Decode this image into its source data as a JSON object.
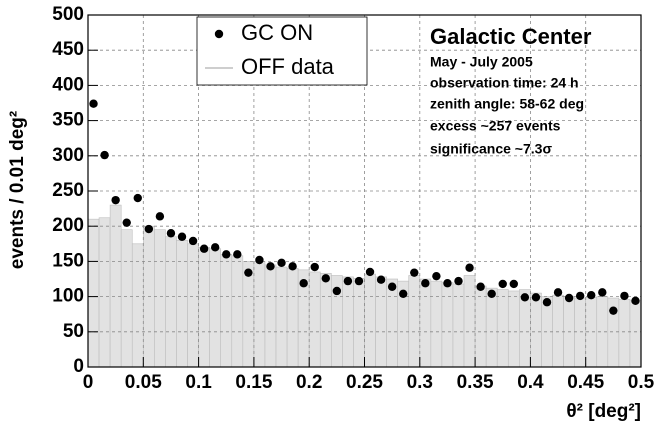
{
  "chart_data": {
    "type": "histogram",
    "title": "Galactic Center",
    "annotations": [
      "May - July 2005",
      "observation time: 24 h",
      "zenith angle: 58-62 deg",
      "excess ~257 events",
      "significance ~7.3σ"
    ],
    "xlabel": "θ² [deg²]",
    "ylabel": "events / 0.01 deg²",
    "bins": [
      0,
      0.01,
      0.02,
      0.03,
      0.04,
      0.05,
      0.06,
      0.07,
      0.08,
      0.09,
      0.1,
      0.11,
      0.12,
      0.13,
      0.14,
      0.15,
      0.16,
      0.17,
      0.18,
      0.19,
      0.2,
      0.21,
      0.22,
      0.23,
      0.24,
      0.25,
      0.26,
      0.27,
      0.28,
      0.29,
      0.3,
      0.31,
      0.32,
      0.33,
      0.34,
      0.35,
      0.36,
      0.37,
      0.38,
      0.39,
      0.4,
      0.41,
      0.42,
      0.43,
      0.44,
      0.45,
      0.46,
      0.47,
      0.48,
      0.49,
      0.5
    ],
    "series": [
      {
        "name": "GC ON",
        "type": "scatter",
        "color": "#000000",
        "x": [
          0.005,
          0.015,
          0.025,
          0.035,
          0.045,
          0.055,
          0.065,
          0.075,
          0.085,
          0.095,
          0.105,
          0.115,
          0.125,
          0.135,
          0.145,
          0.155,
          0.165,
          0.175,
          0.185,
          0.195,
          0.205,
          0.215,
          0.225,
          0.235,
          0.245,
          0.255,
          0.265,
          0.275,
          0.285,
          0.295,
          0.305,
          0.315,
          0.325,
          0.335,
          0.345,
          0.355,
          0.365,
          0.375,
          0.385,
          0.395,
          0.405,
          0.415,
          0.425,
          0.435,
          0.445,
          0.455,
          0.465,
          0.475,
          0.485,
          0.495
        ],
        "values": [
          374,
          301,
          237,
          205,
          240,
          196,
          214,
          190,
          185,
          179,
          168,
          170,
          160,
          160,
          134,
          152,
          143,
          148,
          143,
          119,
          142,
          126,
          108,
          122,
          122,
          135,
          124,
          114,
          104,
          134,
          119,
          129,
          119,
          122,
          141,
          114,
          104,
          118,
          118,
          99,
          99,
          92,
          106,
          98,
          101,
          102,
          106,
          80,
          101,
          94
        ]
      },
      {
        "name": "OFF data",
        "type": "histogram",
        "color": "#e2e2e2",
        "values": [
          210,
          212,
          230,
          195,
          175,
          200,
          195,
          185,
          180,
          175,
          170,
          168,
          160,
          158,
          150,
          150,
          145,
          142,
          140,
          138,
          135,
          133,
          130,
          128,
          126,
          132,
          128,
          125,
          122,
          130,
          125,
          122,
          120,
          118,
          130,
          115,
          112,
          110,
          108,
          110,
          105,
          100,
          102,
          100,
          98,
          99,
          100,
          98,
          96,
          95
        ]
      }
    ],
    "xlim": [
      0,
      0.5
    ],
    "ylim": [
      0,
      500
    ],
    "xticks": [
      0,
      0.05,
      0.1,
      0.15,
      0.2,
      0.25,
      0.3,
      0.35,
      0.4,
      0.45,
      0.5
    ],
    "yticks": [
      0,
      50,
      100,
      150,
      200,
      250,
      300,
      350,
      400,
      450,
      500
    ],
    "grid": true,
    "legend": "upper center"
  }
}
